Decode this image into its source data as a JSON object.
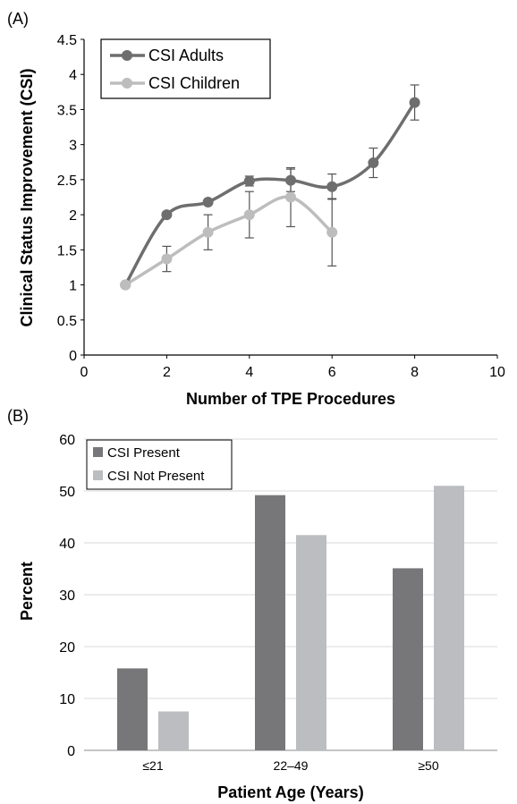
{
  "chart_data": [
    {
      "panel_label": "(A)",
      "type": "line",
      "xlabel": "Number of TPE Procedures",
      "ylabel": "Clinical Status Improvement (CSI)",
      "xlim": [
        0,
        10
      ],
      "ylim": [
        0,
        4.5
      ],
      "x_ticks": [
        "0",
        "2",
        "4",
        "6",
        "8",
        "10"
      ],
      "y_ticks": [
        "0",
        "0.5",
        "1",
        "1.5",
        "2",
        "2.5",
        "3",
        "3.5",
        "4",
        "4.5"
      ],
      "grid": false,
      "legend_position": "top-left",
      "series": [
        {
          "name": "CSI Adults",
          "color": "#6e6e6e",
          "x": [
            1,
            2,
            3,
            4,
            5,
            6,
            7,
            8
          ],
          "y": [
            1.0,
            2.0,
            2.18,
            2.48,
            2.49,
            2.4,
            2.74,
            3.6
          ],
          "err": [
            0,
            0,
            0.03,
            0.07,
            0.16,
            0.18,
            0.21,
            0.25
          ]
        },
        {
          "name": "CSI Children",
          "color": "#bdbdbd",
          "x": [
            1,
            2,
            3,
            4,
            5,
            6
          ],
          "y": [
            1.0,
            1.37,
            1.75,
            2.0,
            2.25,
            1.75
          ],
          "err": [
            0,
            0.18,
            0.25,
            0.33,
            0.42,
            0.48
          ]
        }
      ]
    },
    {
      "panel_label": "(B)",
      "type": "bar",
      "xlabel": "Patient Age (Years)",
      "ylabel": "Percent",
      "categories": [
        "≤21",
        "22–49",
        "≥50"
      ],
      "ylim": [
        0,
        60
      ],
      "y_ticks": [
        "0",
        "10",
        "20",
        "30",
        "40",
        "50",
        "60"
      ],
      "grid": true,
      "legend_position": "top-left",
      "series": [
        {
          "name": "CSI Present",
          "color": "#77777a",
          "values": [
            15.8,
            49.2,
            35.1
          ]
        },
        {
          "name": "CSI Not Present",
          "color": "#bcbdc0",
          "values": [
            7.5,
            41.5,
            51.0
          ]
        }
      ]
    }
  ]
}
